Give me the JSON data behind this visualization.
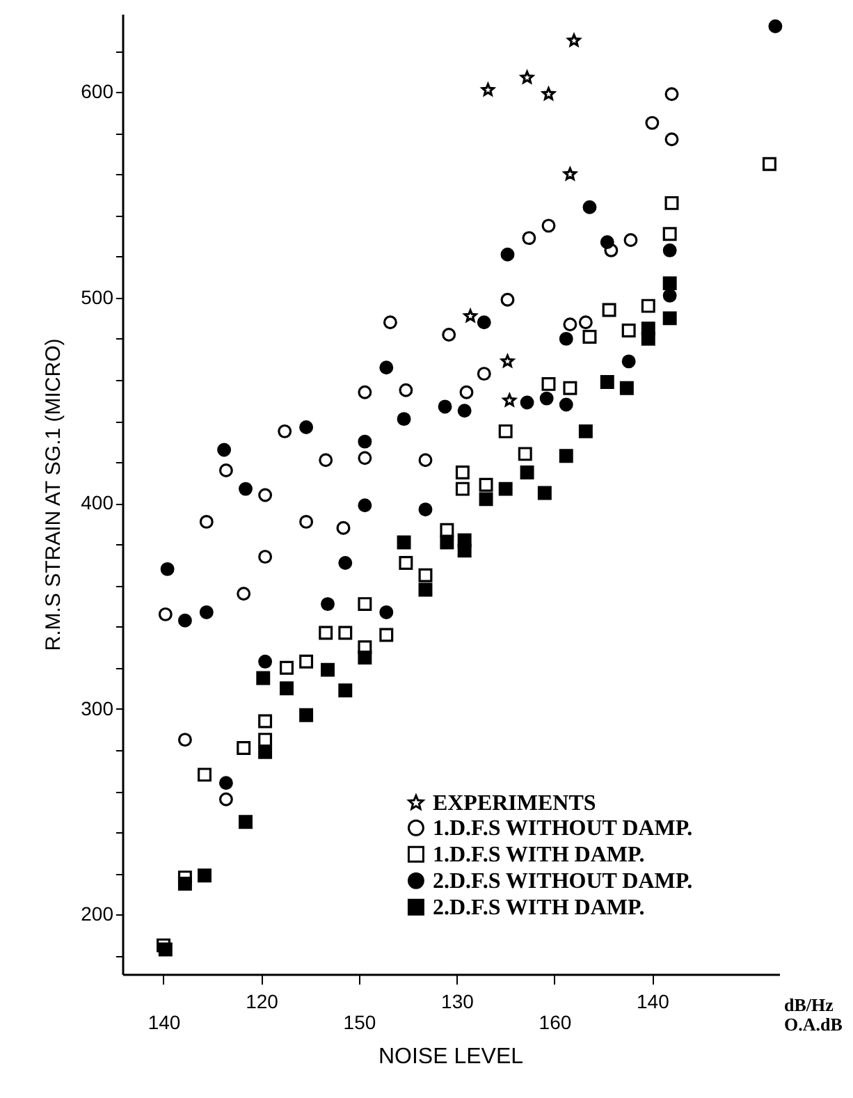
{
  "chart_data": {
    "type": "scatter",
    "xlabel": "dB/Hz",
    "x2label": "O.A.dB",
    "ylabel": "R.M.S STRAIN AT SG.1 (MICRO)",
    "annotations": [
      "NOISE LEVEL"
    ],
    "xlim": [
      112.9,
      146.5
    ],
    "xticks": [
      {
        "value": 115,
        "label": null
      },
      120,
      {
        "value": 125,
        "label": null
      },
      130,
      {
        "value": 135,
        "label": null
      },
      140
    ],
    "x2lim": [
      137.9,
      171.5
    ],
    "x2ticks": [
      140,
      150,
      160
    ],
    "ylim": [
      171,
      638
    ],
    "yticks": [
      {
        "value": 180,
        "label": null
      },
      200,
      {
        "value": 220,
        "label": null
      },
      {
        "value": 240,
        "label": null
      },
      {
        "value": 260,
        "label": null
      },
      {
        "value": 280,
        "label": null
      },
      300,
      {
        "value": 320,
        "label": null
      },
      {
        "value": 340,
        "label": null
      },
      {
        "value": 360,
        "label": null
      },
      {
        "value": 380,
        "label": null
      },
      400,
      {
        "value": 420,
        "label": null
      },
      {
        "value": 440,
        "label": null
      },
      {
        "value": 460,
        "label": null
      },
      {
        "value": 480,
        "label": null
      },
      500,
      {
        "value": 520,
        "label": null
      },
      {
        "value": 540,
        "label": null
      },
      {
        "value": 560,
        "label": null
      },
      {
        "value": 580,
        "label": null
      },
      600,
      {
        "value": 620,
        "label": null
      }
    ],
    "grid": false,
    "legend": "bottom right",
    "series": [
      {
        "name": "EXPERIMENTS",
        "marker": "star",
        "color": "#ffffff",
        "x": [
          131.6,
          133.6,
          134.7,
          136,
          135.8,
          130.7,
          132.6,
          132.7
        ],
        "values": [
          601,
          607,
          599,
          625,
          560,
          491,
          469,
          450
        ]
      },
      {
        "name": "1.D.F.S WITHOUT DAMP.",
        "marker": "circle",
        "color": "#ffffff",
        "x": [
          115.1,
          116.1,
          117.2,
          118.2,
          118.2,
          119.1,
          120.2,
          120.2,
          121.2,
          122.3,
          123.3,
          124.2,
          125.3,
          125.3,
          126.6,
          127.4,
          128.4,
          129.6,
          130.5,
          131.4,
          132.6,
          133.7,
          134.7,
          135.8,
          136.6,
          137.9,
          138.9,
          140,
          141,
          141
        ],
        "values": [
          346,
          285,
          391,
          416,
          256,
          356,
          404,
          374,
          435,
          391,
          421,
          388,
          454,
          422,
          488,
          455,
          421,
          482,
          454,
          463,
          499,
          529,
          535,
          487,
          488,
          523,
          528,
          585,
          599,
          577
        ]
      },
      {
        "name": "1.D.F.S WITH DAMP.",
        "marker": "square",
        "color": "#ffffff",
        "x": [
          115.0,
          116.1,
          117.1,
          119.1,
          120.2,
          120.2,
          121.3,
          122.3,
          123.3,
          124.3,
          125.3,
          125.3,
          126.4,
          127.4,
          128.4,
          129.5,
          130.3,
          130.3,
          131.5,
          132.5,
          133.5,
          134.7,
          135.8,
          136.8,
          137.8,
          138.8,
          139.8,
          140.9,
          141.0,
          146.0
        ],
        "values": [
          185,
          218,
          268,
          281,
          294,
          285,
          320,
          323,
          337,
          337,
          351,
          330,
          336,
          371,
          365,
          387,
          415,
          407,
          409,
          435,
          424,
          458,
          456,
          481,
          494,
          484,
          496,
          531,
          546,
          565
        ]
      },
      {
        "name": "2.D.F.S WITHOUT DAMP.",
        "marker": "circle",
        "color": "#000000",
        "x": [
          115.2,
          116.1,
          117.2,
          118.1,
          118.2,
          119.2,
          120.2,
          122.3,
          123.4,
          124.3,
          125.3,
          125.3,
          126.4,
          126.4,
          127.3,
          128.4,
          129.4,
          130.4,
          131.4,
          132.6,
          133.6,
          134.6,
          135.6,
          135.6,
          136.8,
          137.7,
          138.8,
          140.9,
          140.9,
          146.3
        ],
        "values": [
          368,
          343,
          347,
          426,
          264,
          407,
          323,
          437,
          351,
          371,
          430,
          399,
          466,
          347,
          441,
          397,
          447,
          445,
          488,
          521,
          449,
          451,
          448,
          480,
          544,
          527,
          469,
          523,
          501,
          632
        ]
      },
      {
        "name": "2.D.F.S WITH DAMP.",
        "marker": "square",
        "color": "#000000",
        "x": [
          115.1,
          116.1,
          117.1,
          119.2,
          120.1,
          120.2,
          121.3,
          122.3,
          123.4,
          124.3,
          125.3,
          127.3,
          128.4,
          129.5,
          130.4,
          130.4,
          131.5,
          132.5,
          133.6,
          134.5,
          135.6,
          136.6,
          137.7,
          138.7,
          139.8,
          139.8,
          140.9,
          140.9
        ],
        "values": [
          183,
          215,
          219,
          245,
          315,
          279,
          310,
          297,
          319,
          309,
          325,
          381,
          358,
          381,
          377,
          382,
          402,
          407,
          415,
          405,
          423,
          435,
          459,
          456,
          485,
          480,
          490,
          507
        ]
      }
    ]
  }
}
